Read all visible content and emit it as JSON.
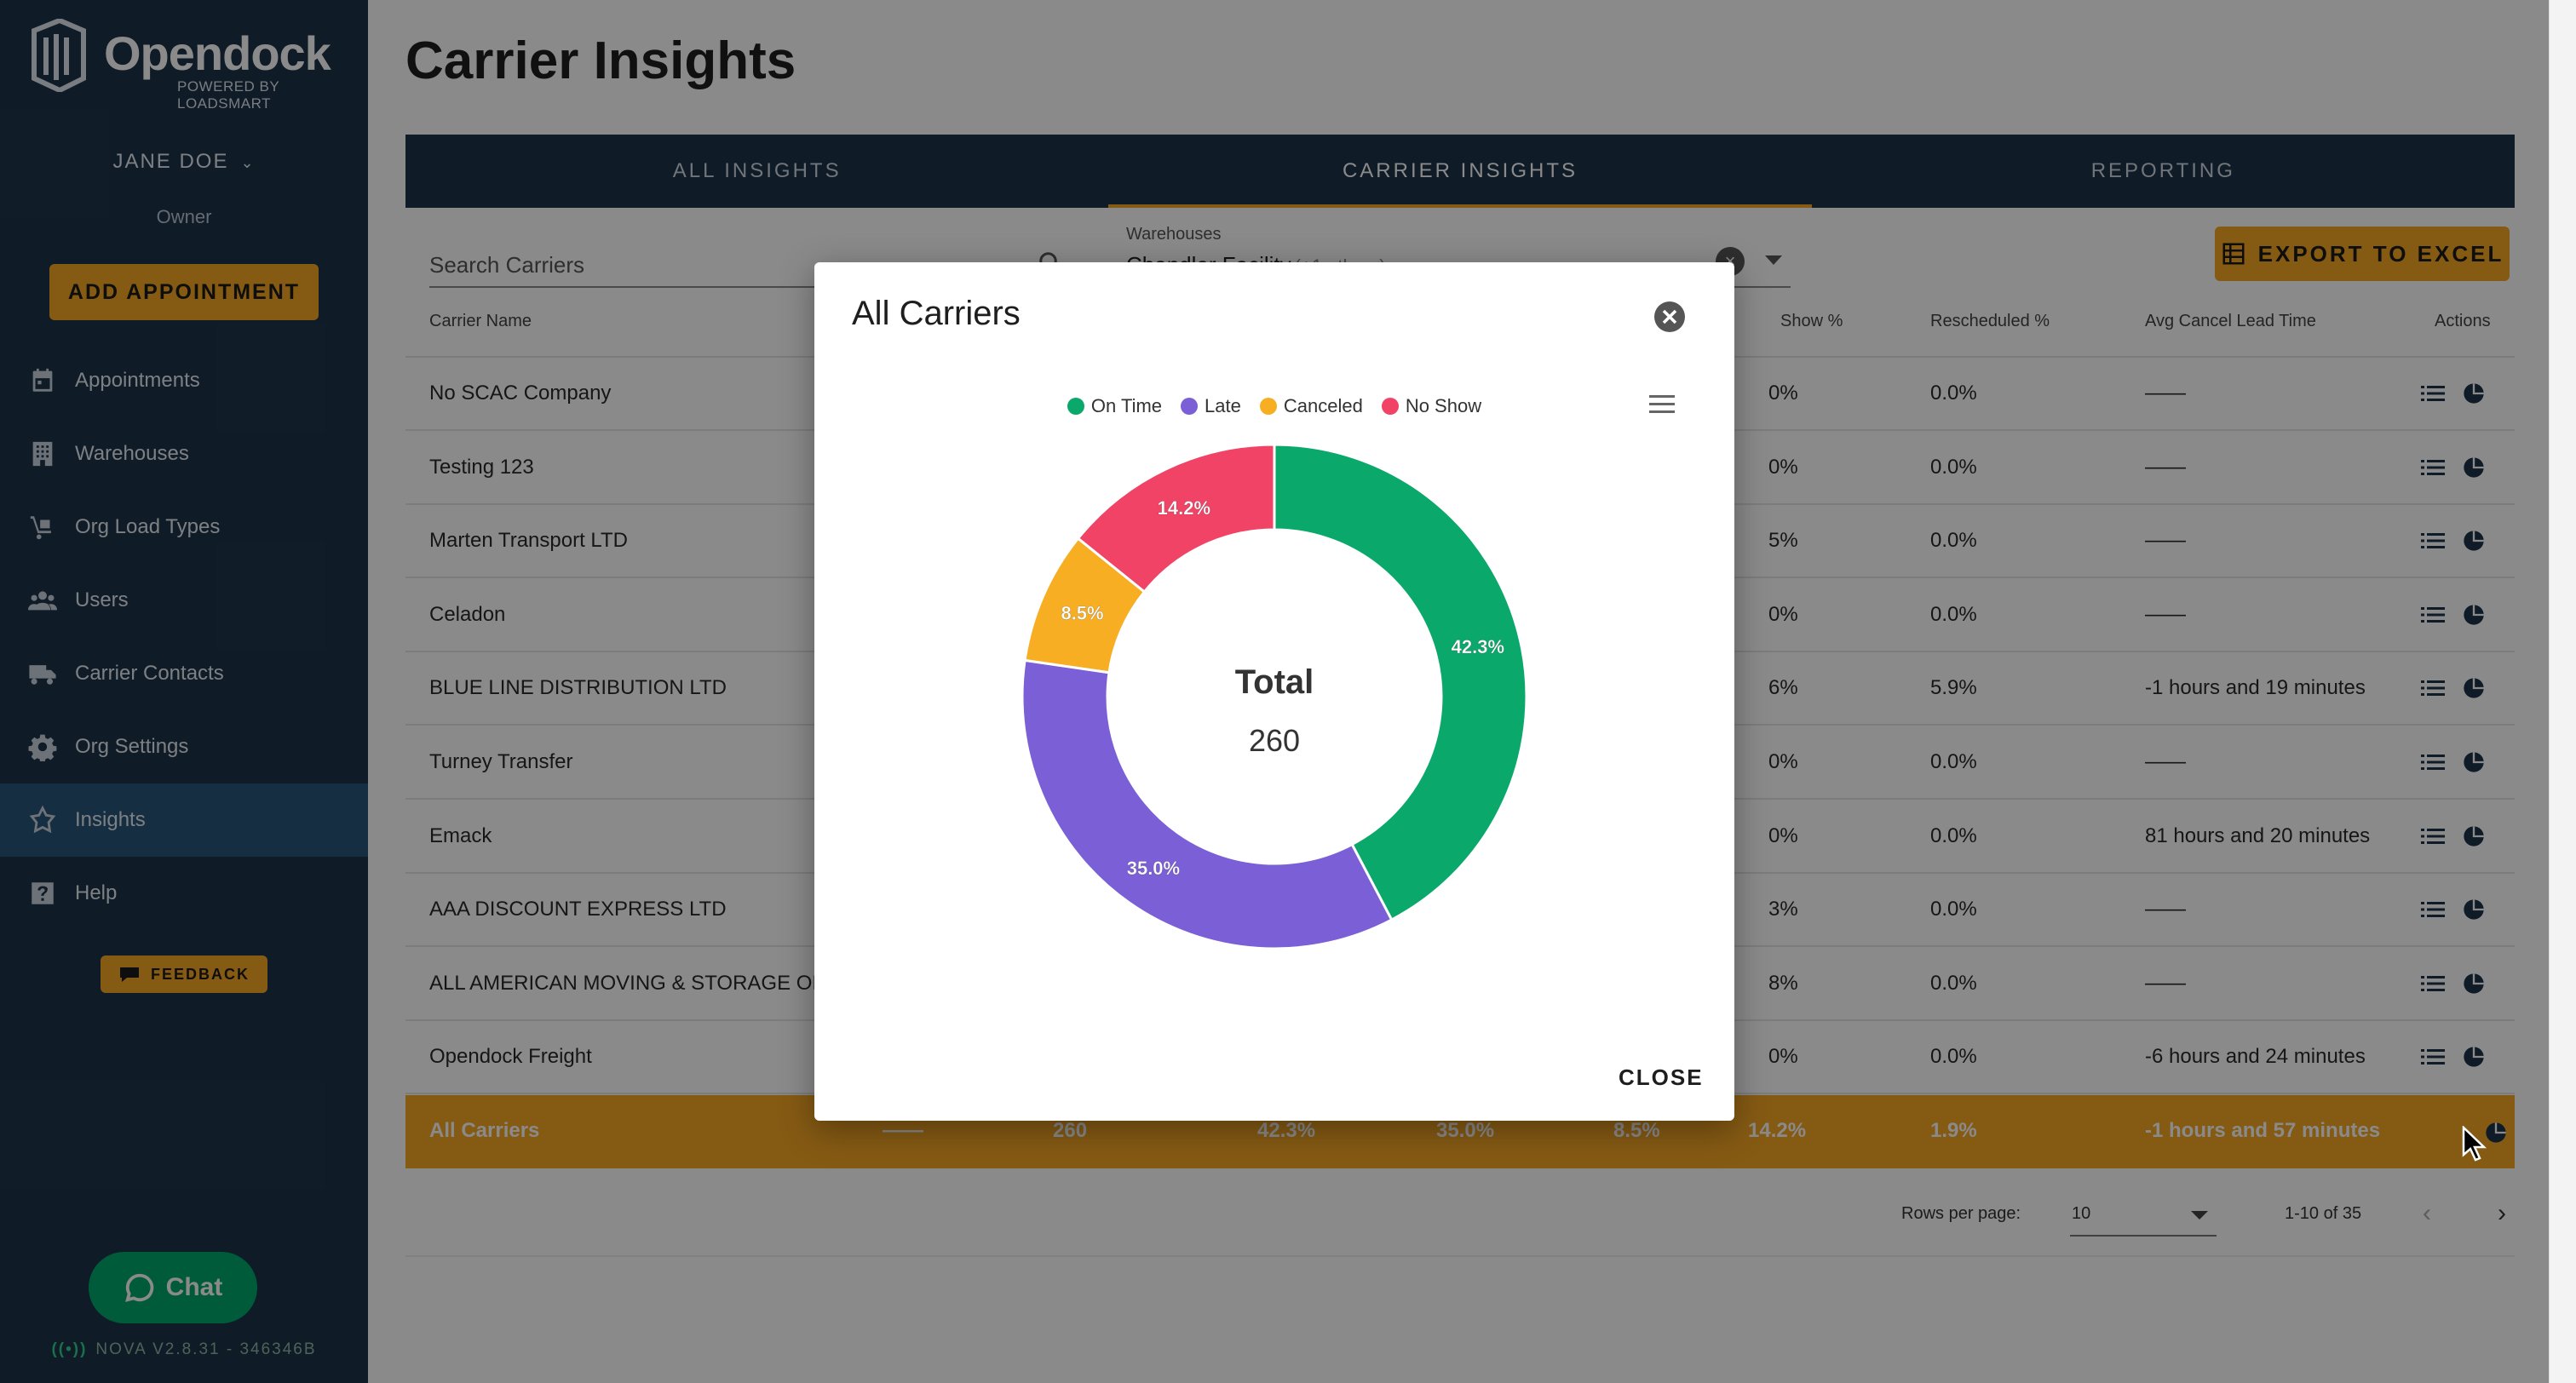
{
  "sidebar": {
    "brand": "Opendock",
    "brand_sub": "POWERED BY LOADSMART",
    "user_name": "JANE DOE",
    "user_role": "Owner",
    "add_appointment": "ADD APPOINTMENT",
    "items": [
      {
        "label": "Appointments",
        "icon": "calendar-icon"
      },
      {
        "label": "Warehouses",
        "icon": "building-icon"
      },
      {
        "label": "Org Load Types",
        "icon": "dolly-icon"
      },
      {
        "label": "Users",
        "icon": "users-icon"
      },
      {
        "label": "Carrier Contacts",
        "icon": "truck-icon"
      },
      {
        "label": "Org Settings",
        "icon": "gear-icon"
      },
      {
        "label": "Insights",
        "icon": "insights-icon"
      },
      {
        "label": "Help",
        "icon": "help-icon"
      }
    ],
    "feedback": "FEEDBACK",
    "chat": "Chat",
    "version": "NOVA V2.8.31 - 346346B"
  },
  "header": {
    "title": "Carrier Insights",
    "tabs": [
      "ALL INSIGHTS",
      "CARRIER INSIGHTS",
      "REPORTING"
    ],
    "active_tab": "CARRIER INSIGHTS"
  },
  "filters": {
    "search_placeholder": "Search Carriers",
    "warehouses_label": "Warehouses",
    "warehouses_value": "Chandler Facility",
    "warehouses_more": "(+1 others)",
    "export_label": "EXPORT TO EXCEL"
  },
  "table": {
    "columns": {
      "carrier_name": "Carrier Name",
      "no_show": "Show %",
      "rescheduled": "Rescheduled %",
      "avg_cancel": "Avg Cancel Lead Time",
      "actions": "Actions"
    },
    "rows": [
      {
        "name": "No SCAC Company",
        "noshow": "0%",
        "rescheduled": "0.0%",
        "avg_cancel": "——"
      },
      {
        "name": "Testing 123",
        "noshow": "0%",
        "rescheduled": "0.0%",
        "avg_cancel": "——"
      },
      {
        "name": "Marten Transport LTD",
        "noshow": "5%",
        "rescheduled": "0.0%",
        "avg_cancel": "——"
      },
      {
        "name": "Celadon",
        "noshow": "0%",
        "rescheduled": "0.0%",
        "avg_cancel": "——"
      },
      {
        "name": "BLUE LINE DISTRIBUTION LTD",
        "noshow": "6%",
        "rescheduled": "5.9%",
        "avg_cancel": "-1 hours and 19 minutes"
      },
      {
        "name": "Turney Transfer",
        "noshow": "0%",
        "rescheduled": "0.0%",
        "avg_cancel": "——"
      },
      {
        "name": "Emack",
        "noshow": "0%",
        "rescheduled": "0.0%",
        "avg_cancel": "81 hours and 20 minutes"
      },
      {
        "name": "AAA DISCOUNT EXPRESS LTD",
        "noshow": "3%",
        "rescheduled": "0.0%",
        "avg_cancel": "——"
      },
      {
        "name": "ALL AMERICAN MOVING & STORAGE OF FA",
        "noshow": "8%",
        "rescheduled": "0.0%",
        "avg_cancel": "——"
      },
      {
        "name": "Opendock Freight",
        "noshow": "0%",
        "rescheduled": "0.0%",
        "avg_cancel": "-6 hours and 24 minutes"
      }
    ],
    "total_row": {
      "name": "All Carriers",
      "scac": "——",
      "total": "260",
      "on_time": "42.3%",
      "late": "35.0%",
      "canceled": "8.5%",
      "no_show": "14.2%",
      "rescheduled": "1.9%",
      "avg_cancel": "-1 hours and 57 minutes"
    }
  },
  "pagination": {
    "rows_per_page_label": "Rows per page:",
    "rows_per_page": "10",
    "range": "1-10 of 35"
  },
  "modal": {
    "title": "All Carriers",
    "close_label": "CLOSE",
    "center_label": "Total",
    "center_value": "260",
    "chart_data": {
      "type": "pie",
      "variant": "donut",
      "categories": [
        "On Time",
        "Late",
        "Canceled",
        "No Show"
      ],
      "values": [
        42.3,
        35.0,
        8.5,
        14.2
      ],
      "labels": [
        "42.3%",
        "35.0%",
        "8.5%",
        "14.2%"
      ],
      "colors": [
        "#0aa86a",
        "#7b5fd6",
        "#f7ae23",
        "#f04365"
      ],
      "legend": "top-center"
    }
  }
}
